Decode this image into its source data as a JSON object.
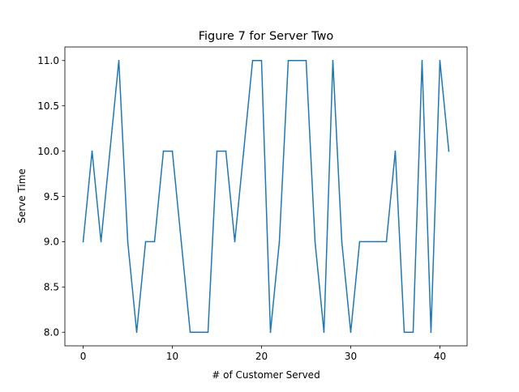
{
  "chart_data": {
    "type": "line",
    "title": "Figure 7 for Server Two",
    "xlabel": "# of Customer Served",
    "ylabel": "Serve Time",
    "xlim": [
      -2.05,
      43.05
    ],
    "ylim": [
      7.85,
      11.15
    ],
    "xticks": [
      0,
      10,
      20,
      30,
      40
    ],
    "xtick_labels": [
      "0",
      "10",
      "20",
      "30",
      "40"
    ],
    "yticks": [
      8.0,
      8.5,
      9.0,
      9.5,
      10.0,
      10.5,
      11.0
    ],
    "ytick_labels": [
      "8.0",
      "8.5",
      "9.0",
      "9.5",
      "10.0",
      "10.5",
      "11.0"
    ],
    "grid": false,
    "series": [
      {
        "color": "#1f77b4",
        "x": [
          0,
          1,
          2,
          3,
          4,
          5,
          6,
          7,
          8,
          9,
          10,
          11,
          12,
          13,
          14,
          15,
          16,
          17,
          18,
          19,
          20,
          21,
          22,
          23,
          24,
          25,
          26,
          27,
          28,
          29,
          30,
          31,
          32,
          33,
          34,
          35,
          36,
          37,
          38,
          39,
          40,
          41
        ],
        "values": [
          9,
          10,
          9,
          10,
          11,
          9,
          8,
          9,
          9,
          10,
          10,
          9,
          8,
          8,
          8,
          10,
          10,
          9,
          10,
          11,
          11,
          8,
          9,
          11,
          11,
          11,
          9,
          8,
          11,
          9,
          8,
          9,
          9,
          9,
          9,
          10,
          8,
          8,
          11,
          8,
          11,
          10
        ]
      }
    ]
  }
}
